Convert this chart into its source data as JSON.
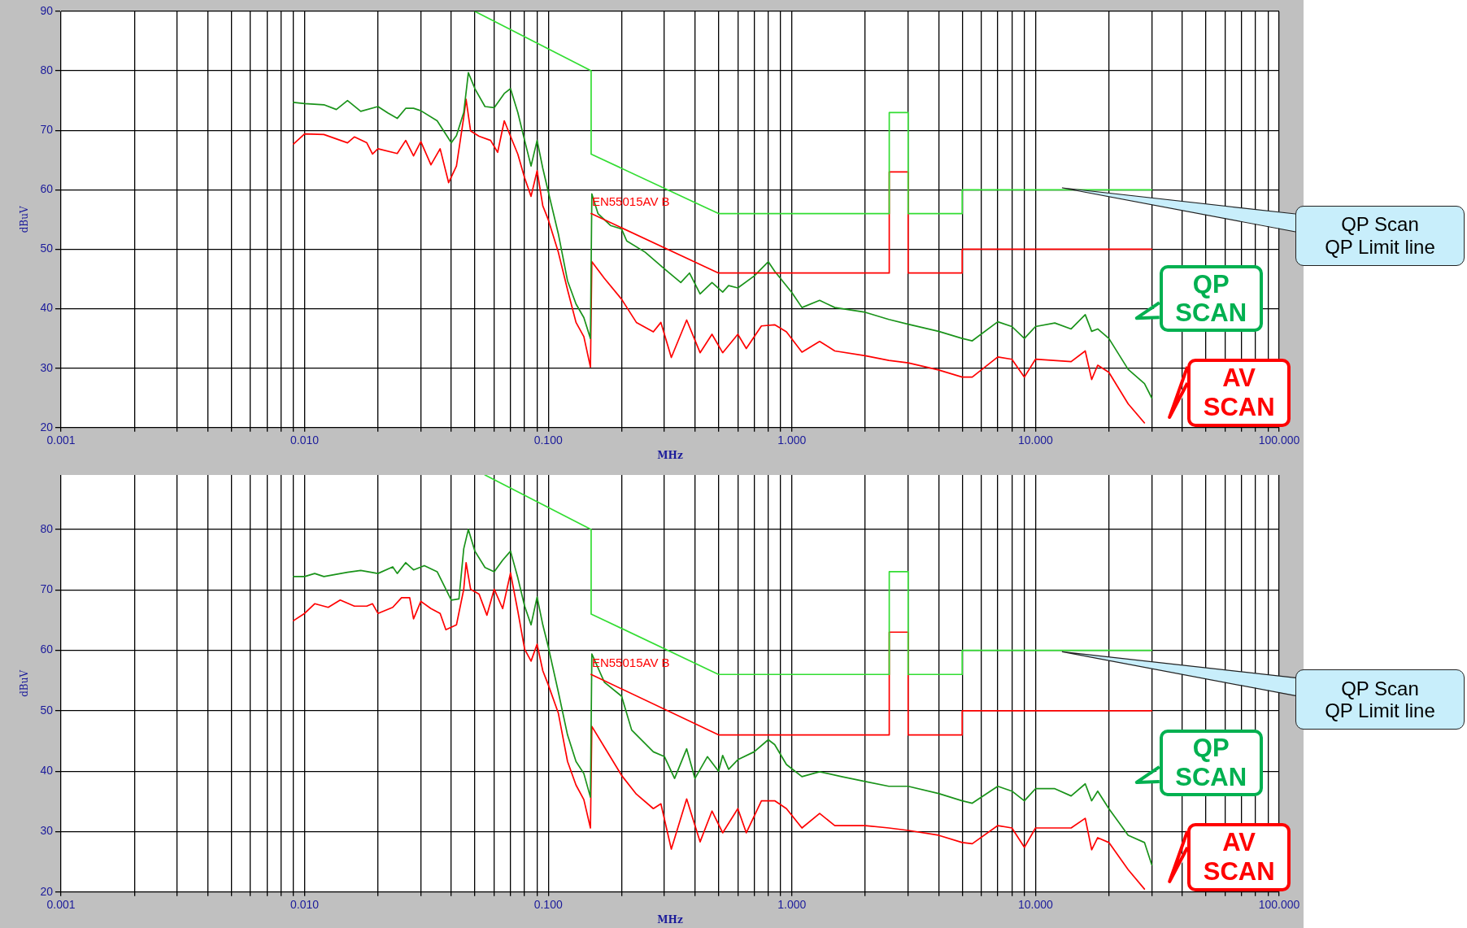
{
  "chart_data": [
    {
      "type": "line",
      "xlabel": "MHz",
      "ylabel": "dBuV",
      "log": "x",
      "grid": true,
      "marker": "none",
      "line_style": "solid",
      "xlim": [
        0.001,
        100
      ],
      "ylim": [
        20,
        90
      ],
      "yticks": [
        20,
        30,
        40,
        50,
        60,
        70,
        80,
        90
      ],
      "xticks": [
        {
          "value": 0.001,
          "label": "0.001"
        },
        {
          "value": 0.002,
          "label": null
        },
        {
          "value": 0.003,
          "label": null
        },
        {
          "value": 0.004,
          "label": null
        },
        {
          "value": 0.005,
          "label": null
        },
        {
          "value": 0.006,
          "label": null
        },
        {
          "value": 0.007,
          "label": null
        },
        {
          "value": 0.008,
          "label": null
        },
        {
          "value": 0.009,
          "label": null
        },
        {
          "value": 0.01,
          "label": "0.010"
        },
        {
          "value": 0.02,
          "label": null
        },
        {
          "value": 0.03,
          "label": null
        },
        {
          "value": 0.04,
          "label": null
        },
        {
          "value": 0.05,
          "label": null
        },
        {
          "value": 0.06,
          "label": null
        },
        {
          "value": 0.07,
          "label": null
        },
        {
          "value": 0.08,
          "label": null
        },
        {
          "value": 0.09,
          "label": null
        },
        {
          "value": 0.1,
          "label": "0.100"
        },
        {
          "value": 0.2,
          "label": null
        },
        {
          "value": 0.3,
          "label": null
        },
        {
          "value": 0.4,
          "label": null
        },
        {
          "value": 0.5,
          "label": null
        },
        {
          "value": 0.6,
          "label": null
        },
        {
          "value": 0.7,
          "label": null
        },
        {
          "value": 0.8,
          "label": null
        },
        {
          "value": 0.9,
          "label": null
        },
        {
          "value": 1,
          "label": "1.000"
        },
        {
          "value": 2,
          "label": null
        },
        {
          "value": 3,
          "label": null
        },
        {
          "value": 4,
          "label": null
        },
        {
          "value": 5,
          "label": null
        },
        {
          "value": 6,
          "label": null
        },
        {
          "value": 7,
          "label": null
        },
        {
          "value": 8,
          "label": null
        },
        {
          "value": 9,
          "label": null
        },
        {
          "value": 10,
          "label": "10.000"
        },
        {
          "value": 20,
          "label": null
        },
        {
          "value": 30,
          "label": null
        },
        {
          "value": 40,
          "label": null
        },
        {
          "value": 50,
          "label": null
        },
        {
          "value": 60,
          "label": null
        },
        {
          "value": 70,
          "label": null
        },
        {
          "value": 80,
          "label": null
        },
        {
          "value": 90,
          "label": null
        },
        {
          "value": 100,
          "label": "100.000"
        }
      ],
      "series": [
        {
          "color": "#33dd33",
          "x": [
            0.05,
            0.15,
            0.15,
            0.5,
            2.51,
            2.51,
            3,
            3,
            5,
            5,
            30
          ],
          "values": [
            90,
            80,
            66,
            56,
            56,
            73,
            73,
            56,
            56,
            60,
            60
          ]
        },
        {
          "color": "#ff0000",
          "x": [
            0.15,
            0.5,
            2.51,
            2.51,
            3,
            3,
            5,
            5,
            30
          ],
          "values": [
            56,
            46,
            46,
            63,
            63,
            46,
            46,
            50,
            50
          ]
        },
        {
          "color": "#1a931a",
          "x": [
            0.009,
            0.01,
            0.012,
            0.0135,
            0.015,
            0.017,
            0.02,
            0.022,
            0.024,
            0.026,
            0.028,
            0.03,
            0.035,
            0.04,
            0.042,
            0.045,
            0.047,
            0.05,
            0.055,
            0.06,
            0.066,
            0.07,
            0.075,
            0.08,
            0.085,
            0.09,
            0.095,
            0.1,
            0.11,
            0.12,
            0.13,
            0.14,
            0.149,
            0.151,
            0.16,
            0.18,
            0.2,
            0.21,
            0.25,
            0.3,
            0.35,
            0.38,
            0.42,
            0.47,
            0.52,
            0.55,
            0.6,
            0.7,
            0.8,
            0.85,
            1,
            1.1,
            1.3,
            1.5,
            2,
            2.5,
            3,
            4,
            5,
            5.5,
            7,
            8,
            9,
            10,
            12,
            14,
            16,
            17,
            18,
            20,
            24,
            28,
            30
          ],
          "values": [
            74.7,
            74.5,
            74.3,
            73.5,
            75,
            73.2,
            74,
            72.9,
            72,
            73.7,
            73.7,
            73.3,
            71.6,
            67.9,
            69.1,
            73,
            79.7,
            77,
            74,
            73.8,
            76.2,
            77,
            73,
            68.3,
            64,
            68.3,
            63.6,
            59.7,
            52.6,
            44.7,
            40.8,
            38.5,
            35,
            59.3,
            56,
            54,
            53.4,
            51.4,
            49.5,
            46.7,
            44.4,
            46,
            42.5,
            44.4,
            42.8,
            43.9,
            43.5,
            45.5,
            47.9,
            46.3,
            42.7,
            40.2,
            41.4,
            40.2,
            39.4,
            38.2,
            37.4,
            36.2,
            35,
            34.6,
            37.8,
            37,
            35,
            37,
            37.6,
            36.6,
            39,
            36.2,
            36.6,
            35,
            29.8,
            27.4,
            25
          ]
        },
        {
          "color": "#ff0000",
          "x": [
            0.009,
            0.01,
            0.012,
            0.015,
            0.016,
            0.018,
            0.019,
            0.02,
            0.024,
            0.026,
            0.028,
            0.03,
            0.033,
            0.036,
            0.039,
            0.042,
            0.045,
            0.046,
            0.048,
            0.052,
            0.058,
            0.062,
            0.066,
            0.07,
            0.075,
            0.08,
            0.085,
            0.09,
            0.095,
            0.1,
            0.11,
            0.12,
            0.13,
            0.14,
            0.149,
            0.151,
            0.17,
            0.2,
            0.23,
            0.27,
            0.29,
            0.32,
            0.37,
            0.42,
            0.47,
            0.52,
            0.6,
            0.65,
            0.75,
            0.85,
            0.95,
            1.1,
            1.3,
            1.5,
            2,
            2.5,
            3,
            4,
            5,
            5.5,
            7,
            8,
            9,
            10,
            14,
            16,
            17,
            18,
            20,
            24,
            28
          ],
          "values": [
            67.7,
            69.4,
            69.3,
            67.9,
            68.9,
            67.9,
            66,
            66.9,
            66.1,
            68.3,
            65.7,
            68.1,
            64.2,
            66.9,
            61.2,
            64,
            72.2,
            75.2,
            69.9,
            69,
            68.3,
            66.3,
            71.6,
            69,
            66,
            62,
            58.9,
            63.2,
            57.3,
            55,
            49.5,
            43.2,
            37.7,
            35.3,
            30.2,
            47.9,
            45.1,
            41.6,
            37.7,
            36.1,
            37.7,
            31.8,
            38.1,
            32.6,
            35.7,
            32.6,
            35.7,
            33.3,
            37.1,
            37.3,
            36.1,
            32.7,
            34.5,
            32.9,
            32.1,
            31.3,
            30.9,
            29.7,
            28.5,
            28.5,
            31.9,
            31.5,
            28.5,
            31.5,
            31.1,
            32.9,
            28.1,
            30.5,
            29.3,
            24,
            20.8
          ]
        }
      ],
      "annotations": [
        {
          "text": "EN55015AV B",
          "x": 0.15,
          "y": 56
        },
        "QP Scan\nQP Limit line",
        "QP\nSCAN",
        "AV\nSCAN"
      ]
    },
    {
      "type": "line",
      "xlabel": "MHz",
      "ylabel": "dBuV",
      "log": "x",
      "grid": true,
      "marker": "none",
      "line_style": "solid",
      "xlim": [
        0.001,
        100
      ],
      "ylim": [
        20,
        89
      ],
      "yticks": [
        20,
        30,
        40,
        50,
        60,
        70,
        80
      ],
      "xticks": [
        {
          "value": 0.001,
          "label": "0.001"
        },
        {
          "value": 0.002,
          "label": null
        },
        {
          "value": 0.003,
          "label": null
        },
        {
          "value": 0.004,
          "label": null
        },
        {
          "value": 0.005,
          "label": null
        },
        {
          "value": 0.006,
          "label": null
        },
        {
          "value": 0.007,
          "label": null
        },
        {
          "value": 0.008,
          "label": null
        },
        {
          "value": 0.009,
          "label": null
        },
        {
          "value": 0.01,
          "label": "0.010"
        },
        {
          "value": 0.02,
          "label": null
        },
        {
          "value": 0.03,
          "label": null
        },
        {
          "value": 0.04,
          "label": null
        },
        {
          "value": 0.05,
          "label": null
        },
        {
          "value": 0.06,
          "label": null
        },
        {
          "value": 0.07,
          "label": null
        },
        {
          "value": 0.08,
          "label": null
        },
        {
          "value": 0.09,
          "label": null
        },
        {
          "value": 0.1,
          "label": "0.100"
        },
        {
          "value": 0.2,
          "label": null
        },
        {
          "value": 0.3,
          "label": null
        },
        {
          "value": 0.4,
          "label": null
        },
        {
          "value": 0.5,
          "label": null
        },
        {
          "value": 0.6,
          "label": null
        },
        {
          "value": 0.7,
          "label": null
        },
        {
          "value": 0.8,
          "label": null
        },
        {
          "value": 0.9,
          "label": null
        },
        {
          "value": 1,
          "label": "1.000"
        },
        {
          "value": 2,
          "label": null
        },
        {
          "value": 3,
          "label": null
        },
        {
          "value": 4,
          "label": null
        },
        {
          "value": 5,
          "label": null
        },
        {
          "value": 6,
          "label": null
        },
        {
          "value": 7,
          "label": null
        },
        {
          "value": 8,
          "label": null
        },
        {
          "value": 9,
          "label": null
        },
        {
          "value": 10,
          "label": "10.000"
        },
        {
          "value": 20,
          "label": null
        },
        {
          "value": 30,
          "label": null
        },
        {
          "value": 40,
          "label": null
        },
        {
          "value": 50,
          "label": null
        },
        {
          "value": 60,
          "label": null
        },
        {
          "value": 70,
          "label": null
        },
        {
          "value": 80,
          "label": null
        },
        {
          "value": 90,
          "label": null
        },
        {
          "value": 100,
          "label": "100.000"
        }
      ],
      "series": [
        {
          "color": "#33dd33",
          "x": [
            0.055,
            0.15,
            0.15,
            0.5,
            2.51,
            2.51,
            3,
            3,
            5,
            5,
            30
          ],
          "values": [
            89,
            80,
            66,
            56,
            56,
            73,
            73,
            56,
            56,
            60,
            60
          ]
        },
        {
          "color": "#ff0000",
          "x": [
            0.15,
            0.5,
            2.51,
            2.51,
            3,
            3,
            5,
            5,
            30
          ],
          "values": [
            56,
            46,
            46,
            63,
            63,
            46,
            46,
            50,
            50
          ]
        },
        {
          "color": "#1a931a",
          "x": [
            0.009,
            0.01,
            0.011,
            0.012,
            0.015,
            0.017,
            0.02,
            0.023,
            0.024,
            0.026,
            0.028,
            0.031,
            0.035,
            0.04,
            0.043,
            0.045,
            0.047,
            0.05,
            0.055,
            0.06,
            0.065,
            0.07,
            0.075,
            0.08,
            0.085,
            0.09,
            0.095,
            0.1,
            0.11,
            0.12,
            0.13,
            0.14,
            0.149,
            0.151,
            0.17,
            0.2,
            0.22,
            0.27,
            0.3,
            0.33,
            0.37,
            0.4,
            0.45,
            0.5,
            0.52,
            0.55,
            0.6,
            0.7,
            0.8,
            0.85,
            0.95,
            1.1,
            1.3,
            1.6,
            2,
            2.5,
            3,
            4,
            5,
            5.5,
            7,
            8,
            9,
            10,
            12,
            14,
            16,
            17,
            18,
            20,
            24,
            28,
            30
          ],
          "values": [
            72.2,
            72.2,
            72.7,
            72.2,
            72.9,
            73.2,
            72.7,
            73.8,
            72.7,
            74.5,
            73.3,
            74,
            73,
            68.3,
            68.5,
            76.8,
            80,
            76.4,
            73.7,
            73,
            74.9,
            76.4,
            72,
            67.3,
            64.2,
            68.8,
            64.2,
            60.6,
            53.1,
            46,
            41.6,
            39.6,
            35.7,
            59.4,
            54.7,
            52.4,
            46.8,
            43.2,
            42.4,
            38.8,
            43.7,
            38.8,
            42.4,
            40,
            42.6,
            40.3,
            41.9,
            43.2,
            45.2,
            44.4,
            41.1,
            39.1,
            39.9,
            39.1,
            38.3,
            37.5,
            37.5,
            36.3,
            35.1,
            34.7,
            37.5,
            36.7,
            35.1,
            37.1,
            37.1,
            35.9,
            37.9,
            35.1,
            36.7,
            33.8,
            29.4,
            28.2,
            24.5
          ]
        },
        {
          "color": "#ff0000",
          "x": [
            0.009,
            0.01,
            0.011,
            0.0125,
            0.014,
            0.016,
            0.018,
            0.019,
            0.02,
            0.023,
            0.025,
            0.027,
            0.028,
            0.03,
            0.033,
            0.036,
            0.038,
            0.042,
            0.045,
            0.046,
            0.048,
            0.052,
            0.056,
            0.06,
            0.065,
            0.07,
            0.075,
            0.08,
            0.085,
            0.09,
            0.095,
            0.1,
            0.11,
            0.12,
            0.13,
            0.14,
            0.149,
            0.151,
            0.17,
            0.2,
            0.23,
            0.27,
            0.29,
            0.32,
            0.37,
            0.42,
            0.47,
            0.52,
            0.6,
            0.65,
            0.75,
            0.85,
            0.95,
            1.1,
            1.3,
            1.5,
            2,
            2.5,
            3,
            4,
            5,
            5.5,
            7,
            8,
            9,
            10,
            14,
            16,
            17,
            18,
            20,
            24,
            28
          ],
          "values": [
            64.9,
            66.1,
            67.7,
            67.1,
            68.3,
            67.3,
            67.3,
            67.7,
            66.1,
            67.1,
            68.7,
            68.7,
            65.2,
            68.1,
            66.9,
            66.1,
            63.4,
            64.2,
            70.1,
            74.5,
            70.1,
            69.3,
            65.8,
            70.1,
            66.9,
            72.8,
            66.5,
            60.2,
            58.2,
            61,
            56.6,
            54.3,
            49.6,
            41.6,
            37.7,
            35.3,
            30.6,
            47.4,
            44,
            39.3,
            36.2,
            33.8,
            34.6,
            27.1,
            35.4,
            28.3,
            33.4,
            29.8,
            33.8,
            29.8,
            35.1,
            35.1,
            33.8,
            30.6,
            33,
            31,
            31,
            30.6,
            30.2,
            29.4,
            28.2,
            28,
            31,
            30.6,
            27.4,
            30.6,
            30.6,
            32.2,
            27,
            29,
            28.2,
            23.7,
            20.5
          ]
        }
      ],
      "annotations": [
        {
          "text": "EN55015AV B",
          "x": 0.15,
          "y": 56
        },
        "QP Scan\nQP Limit line",
        "QP\nSCAN",
        "AV\nSCAN"
      ]
    }
  ]
}
